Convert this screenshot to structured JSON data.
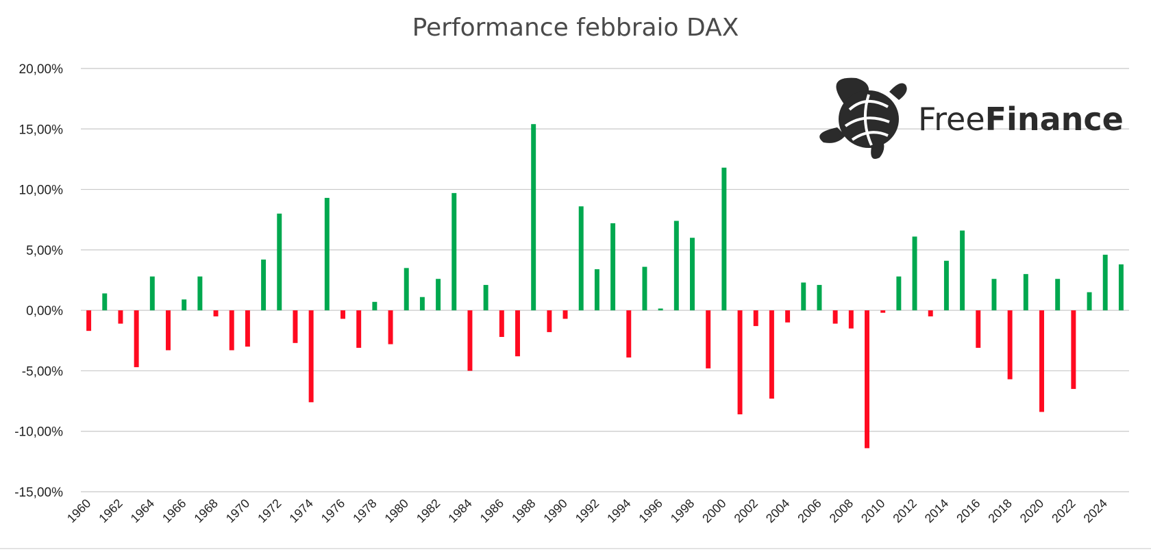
{
  "chart_data": {
    "type": "bar",
    "title": "Performance febbraio DAX",
    "xlabel": "",
    "ylabel": "",
    "ylim": [
      -15,
      20
    ],
    "yticks": [
      20,
      15,
      10,
      5,
      0,
      -5,
      -10,
      -15
    ],
    "ytick_labels": [
      "20,00%",
      "15,00%",
      "10,00%",
      "5,00%",
      "0,00%",
      "-5,00%",
      "-10,00%",
      "-15,00%"
    ],
    "grid": true,
    "legend": "none",
    "positive_color": "#00a84f",
    "negative_color": "#ff0a20",
    "x_tick_labels": [
      "1960",
      "1962",
      "1964",
      "1966",
      "1968",
      "1970",
      "1972",
      "1974",
      "1976",
      "1978",
      "1980",
      "1982",
      "1984",
      "1986",
      "1988",
      "1990",
      "1992",
      "1994",
      "1996",
      "1998",
      "2000",
      "2002",
      "2004",
      "2006",
      "2008",
      "2010",
      "2012",
      "2014",
      "2016",
      "2018",
      "2020",
      "2022",
      "2024"
    ],
    "categories": [
      1960,
      1961,
      1962,
      1963,
      1964,
      1965,
      1966,
      1967,
      1968,
      1969,
      1970,
      1971,
      1972,
      1973,
      1974,
      1975,
      1976,
      1977,
      1978,
      1979,
      1980,
      1981,
      1982,
      1983,
      1984,
      1985,
      1986,
      1987,
      1988,
      1989,
      1990,
      1991,
      1992,
      1993,
      1994,
      1995,
      1996,
      1997,
      1998,
      1999,
      2000,
      2001,
      2002,
      2003,
      2004,
      2005,
      2006,
      2007,
      2008,
      2009,
      2010,
      2011,
      2012,
      2013,
      2014,
      2015,
      2016,
      2017,
      2018,
      2019,
      2020,
      2021,
      2022,
      2023,
      2024,
      2025
    ],
    "values": [
      -1.7,
      1.4,
      -1.1,
      -4.7,
      2.8,
      -3.3,
      0.9,
      2.8,
      -0.5,
      -3.3,
      -3.0,
      4.2,
      8.0,
      -2.7,
      -7.6,
      9.3,
      -0.7,
      -3.1,
      0.7,
      -2.8,
      3.5,
      1.1,
      2.6,
      9.7,
      -5.0,
      2.1,
      -2.2,
      -3.8,
      15.4,
      -1.8,
      -0.7,
      8.6,
      3.4,
      7.2,
      -3.9,
      3.6,
      0.15,
      7.4,
      6.0,
      -4.8,
      11.8,
      -8.6,
      -1.3,
      -7.3,
      -1.0,
      2.3,
      2.1,
      -1.1,
      -1.5,
      -11.4,
      -0.2,
      2.8,
      6.1,
      -0.5,
      4.1,
      6.6,
      -3.1,
      2.6,
      -5.7,
      3.0,
      -8.4,
      2.6,
      -6.5,
      1.5,
      4.6,
      3.8
    ]
  },
  "logo": {
    "icon": "turtle-icon",
    "text_regular": "Free",
    "text_bold": "Finance",
    "color": "#2b2b2b"
  }
}
